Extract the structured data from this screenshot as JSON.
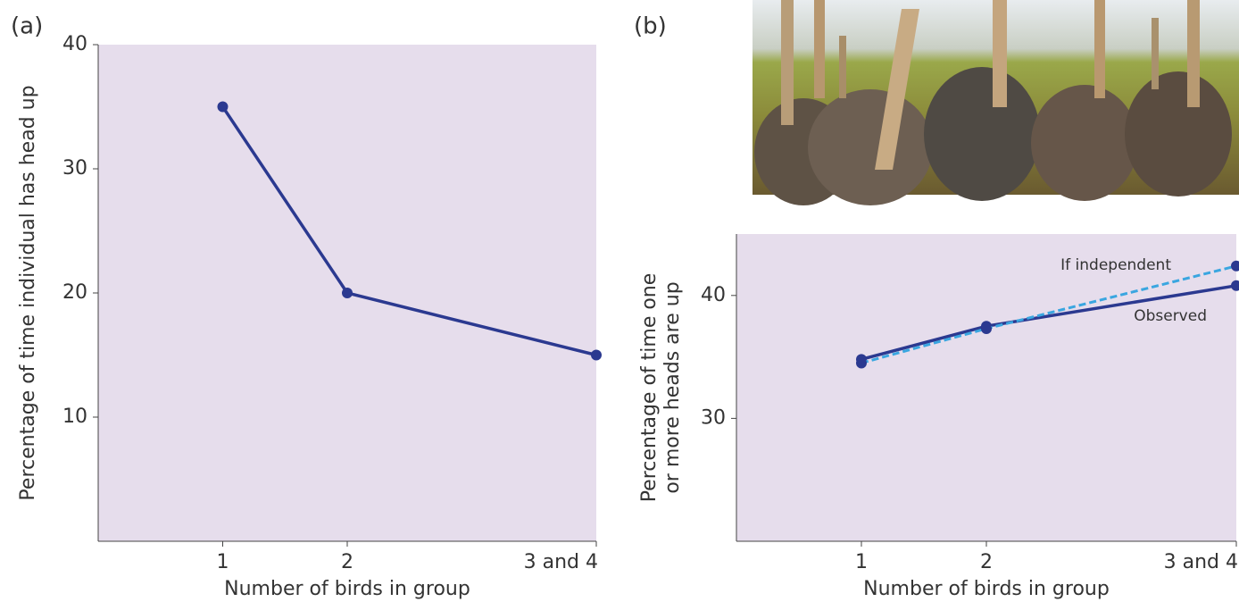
{
  "chart_data": [
    {
      "type": "line",
      "panel_label": "(a)",
      "ylabel": [
        "Percentage of time individual has head up"
      ],
      "xlabel": "Number of birds in group",
      "x": [
        1,
        2,
        4
      ],
      "values": [
        35,
        20,
        15
      ],
      "color": "#2b3990",
      "xlim": [
        0,
        4
      ],
      "xticks": [
        1,
        2,
        {
          "value": 4,
          "label": "3 and 4"
        }
      ],
      "ylim": [
        0,
        40
      ],
      "yticks": [
        10,
        20,
        30,
        40
      ]
    },
    {
      "type": "line",
      "panel_label": "(b)",
      "ylabel": [
        "Percentage of time one",
        "or more heads are up"
      ],
      "xlabel": "Number of birds in group",
      "x": [
        1,
        2,
        4
      ],
      "series": [
        {
          "name": "Observed",
          "color": "#2b3990",
          "linestyle": "solid",
          "values": [
            34.8,
            37.5,
            40.8
          ]
        },
        {
          "name": "If independent",
          "color": "#3aa6e0",
          "linestyle": "dashed",
          "values": [
            34.5,
            37.3,
            42.4
          ]
        }
      ],
      "legend": "inline",
      "xlim": [
        0,
        4
      ],
      "xticks": [
        1,
        2,
        {
          "value": 4,
          "label": "3 and 4"
        }
      ],
      "ylim": [
        20,
        45
      ],
      "yticks": [
        30,
        40
      ]
    }
  ]
}
